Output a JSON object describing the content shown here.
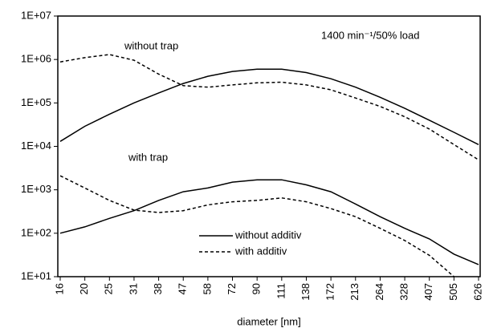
{
  "chart_data": {
    "type": "line",
    "ylog": true,
    "grid": false,
    "legend": "bottom-center",
    "x_label": "diameter [nm]",
    "annotations": [
      "without trap",
      "with trap",
      "1400 min⁻¹/50% load"
    ],
    "categories": [
      "16",
      "20",
      "25",
      "31",
      "38",
      "47",
      "58",
      "72",
      "90",
      "111",
      "138",
      "172",
      "213",
      "264",
      "328",
      "407",
      "505",
      "626"
    ],
    "ylim": [
      10,
      10000000
    ],
    "yticks": [
      {
        "value": 10,
        "label": "1E+01"
      },
      {
        "value": 100,
        "label": "1E+02"
      },
      {
        "value": 1000,
        "label": "1E+03"
      },
      {
        "value": 10000,
        "label": "1E+04"
      },
      {
        "value": 100000,
        "label": "1E+05"
      },
      {
        "value": 1000000,
        "label": "1E+06"
      },
      {
        "value": 10000000,
        "label": "1E+07"
      }
    ],
    "series": [
      {
        "name": "without additiv",
        "color": "#000000",
        "style": "solid",
        "values": [
          13000,
          29000,
          55000,
          100000,
          170000,
          280000,
          410000,
          530000,
          600000,
          600000,
          500000,
          360000,
          230000,
          135000,
          75000,
          40000,
          21000,
          11000
        ]
      },
      {
        "name": "with additiv",
        "color": "#000000",
        "style": "dashed",
        "values": [
          880000,
          1100000,
          1300000,
          960000,
          460000,
          250000,
          230000,
          260000,
          290000,
          300000,
          260000,
          200000,
          130000,
          83000,
          48000,
          25000,
          11000,
          4900
        ]
      },
      {
        "name": "without additiv",
        "color": "#000000",
        "style": "solid",
        "values": [
          100,
          140,
          220,
          330,
          570,
          900,
          1100,
          1500,
          1700,
          1700,
          1300,
          900,
          470,
          240,
          130,
          74,
          33,
          19
        ]
      },
      {
        "name": "with additiv",
        "color": "#000000",
        "style": "dashed",
        "values": [
          2100,
          1100,
          570,
          340,
          300,
          330,
          450,
          530,
          570,
          650,
          530,
          370,
          240,
          130,
          68,
          31,
          10,
          null
        ]
      }
    ]
  }
}
